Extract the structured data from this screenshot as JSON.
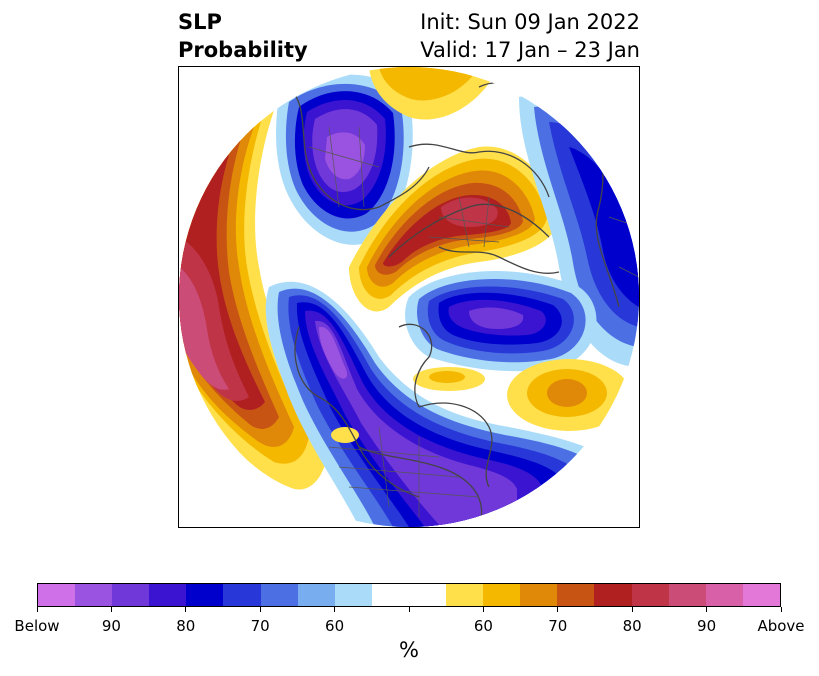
{
  "title": {
    "left_line1": "SLP",
    "left_line2": "Probability",
    "right_line1": "Init: Sun 09 Jan 2022",
    "right_line2": "Valid: 17 Jan – 23 Jan"
  },
  "colorbar": {
    "unit": "%",
    "colors": [
      "#d070e8",
      "#9a52e0",
      "#7038d8",
      "#3a14d0",
      "#0000cc",
      "#2838d8",
      "#4c70e4",
      "#78aef0",
      "#aadcfa",
      "#ffffff",
      "#ffffff",
      "#ffe04a",
      "#f4b800",
      "#e08808",
      "#c85414",
      "#b02020",
      "#c03448",
      "#cc4c78",
      "#d860a8",
      "#e478d8"
    ],
    "ticks": [
      {
        "label": "Below",
        "index": 0
      },
      {
        "label": "90",
        "index": 2
      },
      {
        "label": "80",
        "index": 4
      },
      {
        "label": "70",
        "index": 6
      },
      {
        "label": "60",
        "index": 8
      },
      {
        "label": "",
        "index": 10
      },
      {
        "label": "60",
        "index": 12
      },
      {
        "label": "70",
        "index": 14
      },
      {
        "label": "80",
        "index": 16
      },
      {
        "label": "90",
        "index": 18
      },
      {
        "label": "Above",
        "index": 20
      }
    ]
  },
  "map": {
    "projection": "polar-stereographic",
    "colors": {
      "above_outer": "#ffe04a",
      "above_mid": "#e08808",
      "above_strong": "#b02020",
      "above_peak": "#cc4c78",
      "below_outer": "#aadcfa",
      "below_mid": "#2838d8",
      "below_strong": "#0000cc",
      "below_peak": "#7038d8",
      "coast": "#444444"
    }
  }
}
